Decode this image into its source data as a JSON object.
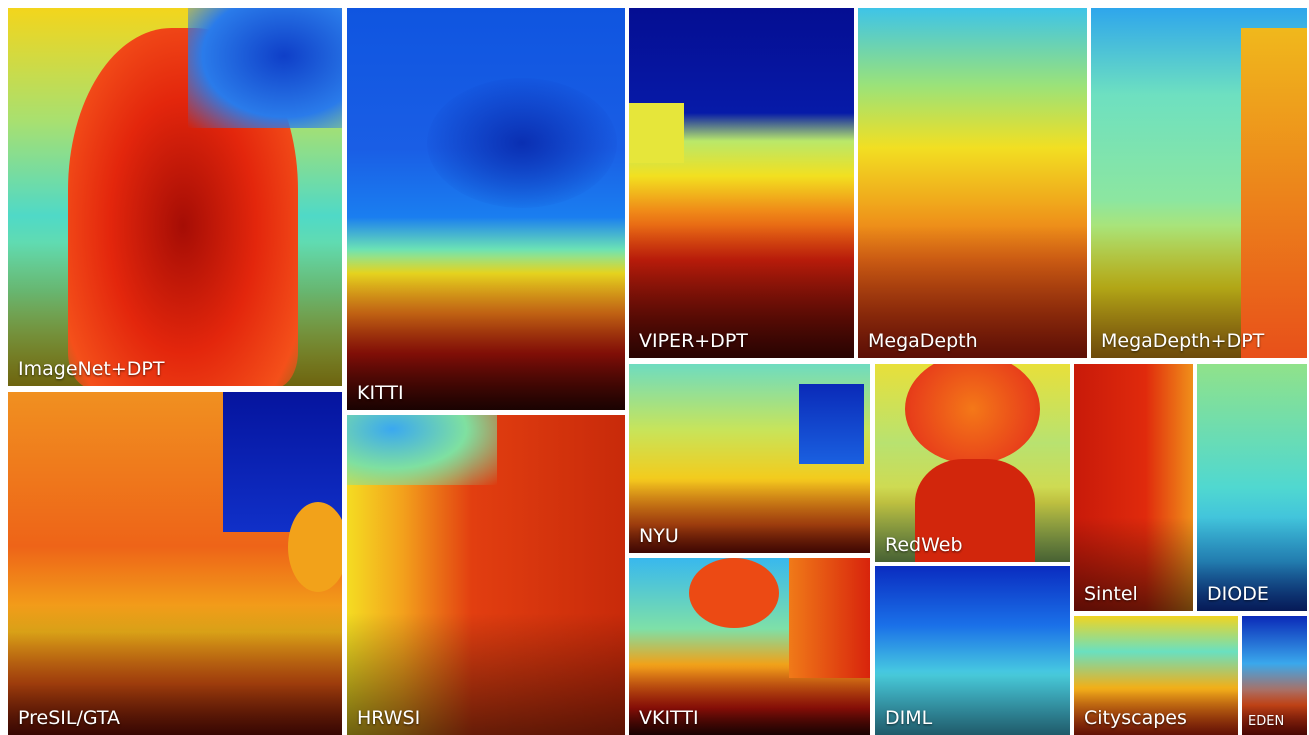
{
  "tiles": [
    {
      "label": "ImageNet+DPT"
    },
    {
      "label": "PreSIL/GTA"
    },
    {
      "label": "KITTI"
    },
    {
      "label": "HRWSI"
    },
    {
      "label": "VIPER+DPT"
    },
    {
      "label": "MegaDepth"
    },
    {
      "label": "MegaDepth+DPT"
    },
    {
      "label": "NYU"
    },
    {
      "label": "VKITTI"
    },
    {
      "label": "RedWeb"
    },
    {
      "label": "DIML"
    },
    {
      "label": "Sintel"
    },
    {
      "label": "DIODE"
    },
    {
      "label": "Cityscapes"
    },
    {
      "label": "EDEN"
    }
  ]
}
